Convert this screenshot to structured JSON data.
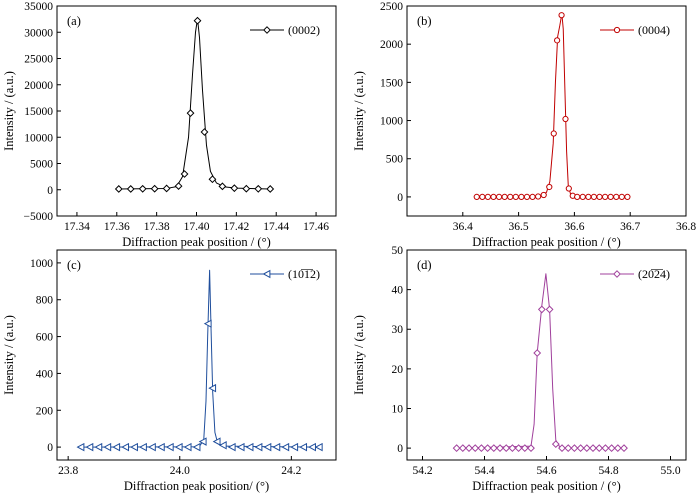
{
  "chart_data": [
    {
      "type": "line",
      "panel_label": "(a)",
      "xlabel": "Diffraction peak position / (°)",
      "ylabel": "Intensity / (a.u.)",
      "xlim": [
        17.33,
        17.47
      ],
      "ylim": [
        -5000,
        35000
      ],
      "xticks": [
        17.34,
        17.36,
        17.38,
        17.4,
        17.42,
        17.44,
        17.46
      ],
      "xtick_labels": [
        "17.34",
        "17.36",
        "17.38",
        "17.40",
        "17.42",
        "17.44",
        "17.46"
      ],
      "yticks": [
        -5000,
        0,
        5000,
        10000,
        15000,
        20000,
        25000,
        30000,
        35000
      ],
      "ytick_labels": [
        "−5000",
        "0",
        "5000",
        "10000",
        "15000",
        "20000",
        "25000",
        "30000",
        "35000"
      ],
      "legend_position": "top-right",
      "colors": {
        "series": "#000000"
      },
      "series": [
        {
          "name": "(0002)",
          "marker": "diamond",
          "points": [
            [
              17.361,
              150
            ],
            [
              17.367,
              150
            ],
            [
              17.373,
              180
            ],
            [
              17.379,
              200
            ],
            [
              17.385,
              250
            ],
            [
              17.391,
              700
            ],
            [
              17.394,
              3000
            ],
            [
              17.397,
              14600
            ],
            [
              17.4005,
              32200
            ],
            [
              17.404,
              11000
            ],
            [
              17.408,
              2000
            ],
            [
              17.413,
              650
            ],
            [
              17.419,
              300
            ],
            [
              17.425,
              200
            ],
            [
              17.431,
              180
            ],
            [
              17.437,
              150
            ]
          ],
          "curve": [
            [
              17.361,
              150
            ],
            [
              17.385,
              250
            ],
            [
              17.39,
              600
            ],
            [
              17.393,
              2500
            ],
            [
              17.396,
              10000
            ],
            [
              17.398,
              22000
            ],
            [
              17.3995,
              30000
            ],
            [
              17.4005,
              32600
            ],
            [
              17.4015,
              29000
            ],
            [
              17.403,
              19000
            ],
            [
              17.405,
              8500
            ],
            [
              17.407,
              3500
            ],
            [
              17.41,
              1300
            ],
            [
              17.414,
              550
            ],
            [
              17.42,
              300
            ],
            [
              17.437,
              150
            ]
          ]
        }
      ]
    },
    {
      "type": "line",
      "panel_label": "(b)",
      "xlabel": "Diffraction peak position / (°)",
      "ylabel": "Intensity / (a.u.)",
      "xlim": [
        36.3,
        36.8
      ],
      "ylim": [
        -250,
        2500
      ],
      "xticks": [
        36.4,
        36.5,
        36.6,
        36.7,
        36.8
      ],
      "xtick_labels": [
        "36.4",
        "36.5",
        "36.6",
        "36.7",
        "36.8"
      ],
      "yticks": [
        0,
        500,
        1000,
        1500,
        2000,
        2500
      ],
      "ytick_labels": [
        "0",
        "500",
        "1000",
        "1500",
        "2000",
        "2500"
      ],
      "legend_position": "top-right",
      "colors": {
        "series": "#c00000"
      },
      "series": [
        {
          "name": "(0004)",
          "marker": "circle",
          "points": [
            [
              36.425,
              0
            ],
            [
              36.435,
              0
            ],
            [
              36.445,
              0
            ],
            [
              36.455,
              0
            ],
            [
              36.465,
              0
            ],
            [
              36.475,
              0
            ],
            [
              36.485,
              0
            ],
            [
              36.495,
              0
            ],
            [
              36.505,
              0
            ],
            [
              36.515,
              0
            ],
            [
              36.525,
              0
            ],
            [
              36.535,
              5
            ],
            [
              36.545,
              25
            ],
            [
              36.555,
              130
            ],
            [
              36.563,
              830
            ],
            [
              36.569,
              2050
            ],
            [
              36.577,
              2380
            ],
            [
              36.584,
              1020
            ],
            [
              36.59,
              110
            ],
            [
              36.597,
              15
            ],
            [
              36.605,
              0
            ],
            [
              36.615,
              0
            ],
            [
              36.625,
              0
            ],
            [
              36.635,
              0
            ],
            [
              36.645,
              0
            ],
            [
              36.655,
              0
            ],
            [
              36.665,
              0
            ],
            [
              36.675,
              0
            ],
            [
              36.685,
              0
            ],
            [
              36.695,
              0
            ]
          ],
          "curve": [
            [
              36.425,
              0
            ],
            [
              36.54,
              10
            ],
            [
              36.55,
              60
            ],
            [
              36.556,
              200
            ],
            [
              36.562,
              700
            ],
            [
              36.566,
              1500
            ],
            [
              36.57,
              2100
            ],
            [
              36.574,
              2250
            ],
            [
              36.5775,
              2400
            ],
            [
              36.58,
              2200
            ],
            [
              36.583,
              1400
            ],
            [
              36.586,
              600
            ],
            [
              36.589,
              150
            ],
            [
              36.593,
              40
            ],
            [
              36.6,
              5
            ],
            [
              36.695,
              0
            ]
          ]
        }
      ]
    },
    {
      "type": "line",
      "panel_label": "(c)",
      "xlabel": "Diffraction peak position/ (°)",
      "ylabel": "Intensity / (a.u.)",
      "xlim": [
        23.78,
        24.28
      ],
      "ylim": [
        -70,
        1070
      ],
      "xticks": [
        23.8,
        24.0,
        24.2
      ],
      "xtick_labels": [
        "23.8",
        "24.0",
        "24.2"
      ],
      "yticks": [
        0,
        200,
        400,
        600,
        800,
        1000
      ],
      "ytick_labels": [
        "0",
        "200",
        "400",
        "600",
        "800",
        "1000"
      ],
      "legend_position": "top-right",
      "colors": {
        "series": "#1f4e9c"
      },
      "series": [
        {
          "name": "(10̅1̅2)",
          "marker": "triangle-left",
          "points": [
            [
              23.823,
              0
            ],
            [
              23.839,
              0
            ],
            [
              23.855,
              0
            ],
            [
              23.871,
              0
            ],
            [
              23.887,
              0
            ],
            [
              23.903,
              0
            ],
            [
              23.919,
              0
            ],
            [
              23.935,
              0
            ],
            [
              23.951,
              0
            ],
            [
              23.967,
              0
            ],
            [
              23.983,
              0
            ],
            [
              23.999,
              0
            ],
            [
              24.015,
              0
            ],
            [
              24.031,
              0
            ],
            [
              24.042,
              30
            ],
            [
              24.051,
              670
            ],
            [
              24.059,
              320
            ],
            [
              24.067,
              30
            ],
            [
              24.078,
              10
            ],
            [
              24.094,
              0
            ],
            [
              24.11,
              0
            ],
            [
              24.126,
              0
            ],
            [
              24.142,
              0
            ],
            [
              24.158,
              0
            ],
            [
              24.174,
              0
            ],
            [
              24.19,
              0
            ],
            [
              24.206,
              0
            ],
            [
              24.222,
              0
            ],
            [
              24.238,
              0
            ],
            [
              24.25,
              0
            ]
          ],
          "curve": [
            [
              23.823,
              0
            ],
            [
              24.035,
              2
            ],
            [
              24.043,
              40
            ],
            [
              24.047,
              250
            ],
            [
              24.05,
              600
            ],
            [
              24.0535,
              960
            ],
            [
              24.056,
              650
            ],
            [
              24.059,
              300
            ],
            [
              24.063,
              80
            ],
            [
              24.068,
              20
            ],
            [
              24.08,
              5
            ],
            [
              24.25,
              0
            ]
          ]
        }
      ]
    },
    {
      "type": "line",
      "panel_label": "(d)",
      "xlabel": "Diffraction peak position / (°)",
      "ylabel": "Intensity / (a.u.)",
      "xlim": [
        54.15,
        55.05
      ],
      "ylim": [
        -3,
        50
      ],
      "xticks": [
        54.2,
        54.4,
        54.6,
        54.8,
        55.0
      ],
      "xtick_labels": [
        "54.2",
        "54.4",
        "54.6",
        "54.8",
        "55.0"
      ],
      "yticks": [
        0,
        10,
        20,
        30,
        40,
        50
      ],
      "ytick_labels": [
        "0",
        "10",
        "20",
        "30",
        "40",
        "50"
      ],
      "legend_position": "top-right",
      "colors": {
        "series": "#a0409c"
      },
      "series": [
        {
          "name": "(20̅2̅4)",
          "marker": "diamond",
          "points": [
            [
              54.31,
              0
            ],
            [
              54.33,
              0
            ],
            [
              54.35,
              0
            ],
            [
              54.37,
              0
            ],
            [
              54.39,
              0
            ],
            [
              54.41,
              0
            ],
            [
              54.43,
              0
            ],
            [
              54.45,
              0
            ],
            [
              54.47,
              0
            ],
            [
              54.49,
              0
            ],
            [
              54.51,
              0
            ],
            [
              54.53,
              0
            ],
            [
              54.55,
              0
            ],
            [
              54.57,
              24
            ],
            [
              54.585,
              35
            ],
            [
              54.61,
              35
            ],
            [
              54.63,
              1
            ],
            [
              54.65,
              0
            ],
            [
              54.67,
              0
            ],
            [
              54.69,
              0
            ],
            [
              54.71,
              0
            ],
            [
              54.73,
              0
            ],
            [
              54.75,
              0
            ],
            [
              54.77,
              0
            ],
            [
              54.79,
              0
            ],
            [
              54.81,
              0
            ],
            [
              54.83,
              0
            ],
            [
              54.85,
              0
            ]
          ],
          "curve": [
            [
              54.31,
              0
            ],
            [
              54.55,
              0.5
            ],
            [
              54.56,
              6
            ],
            [
              54.57,
              24
            ],
            [
              54.585,
              36
            ],
            [
              54.598,
              44
            ],
            [
              54.61,
              35
            ],
            [
              54.62,
              15
            ],
            [
              54.63,
              2
            ],
            [
              54.645,
              0
            ],
            [
              54.85,
              0
            ]
          ]
        }
      ]
    }
  ]
}
